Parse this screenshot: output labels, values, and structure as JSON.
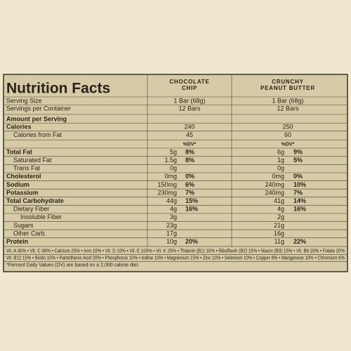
{
  "title": "Nutrition Facts",
  "columns": [
    {
      "lines": [
        "CHOCOLATE",
        "CHIP"
      ]
    },
    {
      "lines": [
        "CRUNCHY",
        "PEANUT BUTTER"
      ]
    }
  ],
  "serving_rows": [
    {
      "label": "Serving Size",
      "values": [
        "1 Bar (68g)",
        "1 Bar (68g)"
      ]
    },
    {
      "label": "Servings per Container",
      "values": [
        "12 Bars",
        "12 Bars"
      ]
    }
  ],
  "amount_header": "Amount per Serving",
  "calorie_rows": [
    {
      "label": "Calories",
      "bold": true,
      "indent": 0,
      "values": [
        240,
        250
      ]
    },
    {
      "label": "Calories from Fat",
      "bold": false,
      "indent": 1,
      "values": [
        45,
        60
      ]
    }
  ],
  "dv_header": "%DV*",
  "nutrient_rows": [
    {
      "label": "Total Fat",
      "bold": true,
      "indent": 0,
      "values": [
        {
          "amount": "5g",
          "dv": "8%"
        },
        {
          "amount": "6g",
          "dv": "9%"
        }
      ]
    },
    {
      "label": "Saturated Fat",
      "bold": false,
      "indent": 1,
      "values": [
        {
          "amount": "1.5g",
          "dv": "8%"
        },
        {
          "amount": "1g",
          "dv": "5%"
        }
      ]
    },
    {
      "label": "Trans Fat",
      "bold": false,
      "indent": 1,
      "values": [
        {
          "amount": "0g"
        },
        {
          "amount": "0g"
        }
      ]
    },
    {
      "label": "Cholesterol",
      "bold": true,
      "indent": 0,
      "values": [
        {
          "amount": "0mg",
          "dv": "0%"
        },
        {
          "amount": "0mg",
          "dv": "0%"
        }
      ]
    },
    {
      "label": "Sodium",
      "bold": true,
      "indent": 0,
      "values": [
        {
          "amount": "150mg",
          "dv": "6%"
        },
        {
          "amount": "240mg",
          "dv": "10%"
        }
      ]
    },
    {
      "label": "Potassium",
      "bold": true,
      "indent": 0,
      "values": [
        {
          "amount": "230mg",
          "dv": "7%"
        },
        {
          "amount": "240mg",
          "dv": "7%"
        }
      ]
    },
    {
      "label": "Total Carbohydrate",
      "bold": true,
      "indent": 0,
      "values": [
        {
          "amount": "44g",
          "dv": "15%"
        },
        {
          "amount": "41g",
          "dv": "14%"
        }
      ]
    },
    {
      "label": "Dietary Fiber",
      "bold": false,
      "indent": 1,
      "values": [
        {
          "amount": "4g",
          "dv": "16%"
        },
        {
          "amount": "4g",
          "dv": "16%"
        }
      ]
    },
    {
      "label": "Insoluble Fiber",
      "bold": false,
      "indent": 2,
      "values": [
        {
          "amount": "3g"
        },
        {
          "amount": "2g"
        }
      ]
    },
    {
      "label": "Sugars",
      "bold": false,
      "indent": 1,
      "values": [
        {
          "amount": "23g"
        },
        {
          "amount": "21g"
        }
      ]
    },
    {
      "label": "Other Carb.",
      "bold": false,
      "indent": 1,
      "values": [
        {
          "amount": "17g"
        },
        {
          "amount": "16g"
        }
      ]
    },
    {
      "label": "Protein",
      "bold": true,
      "indent": 0,
      "values": [
        {
          "amount": "10g",
          "dv": "20%"
        },
        {
          "amount": "11g",
          "dv": "22%"
        }
      ]
    }
  ],
  "vitamins": [
    "Vit. A 30% • Vit. C 90% • Calcium 25% • Iron 10% • Vit. D 10% • Vit. E 100% • Vit. K 25% • Thiamin (B1) 10% • Riboflavin (B2) 15% • Niacin (B3) 15% • Vit. B6 20% • Folate 20%",
    "Vit. B12 15% • Biotin 10% • Pantothenic Acid 20% • Phosphorus 10% • Iodine 10% • Magnesium 15% • Zinc 10% • Selenium 10% • Copper 8% • Manganese 10% • Chromium 6%"
  ],
  "footnote": "*Percent Daily Values (DV) are based on a 2,000 calorie diet."
}
